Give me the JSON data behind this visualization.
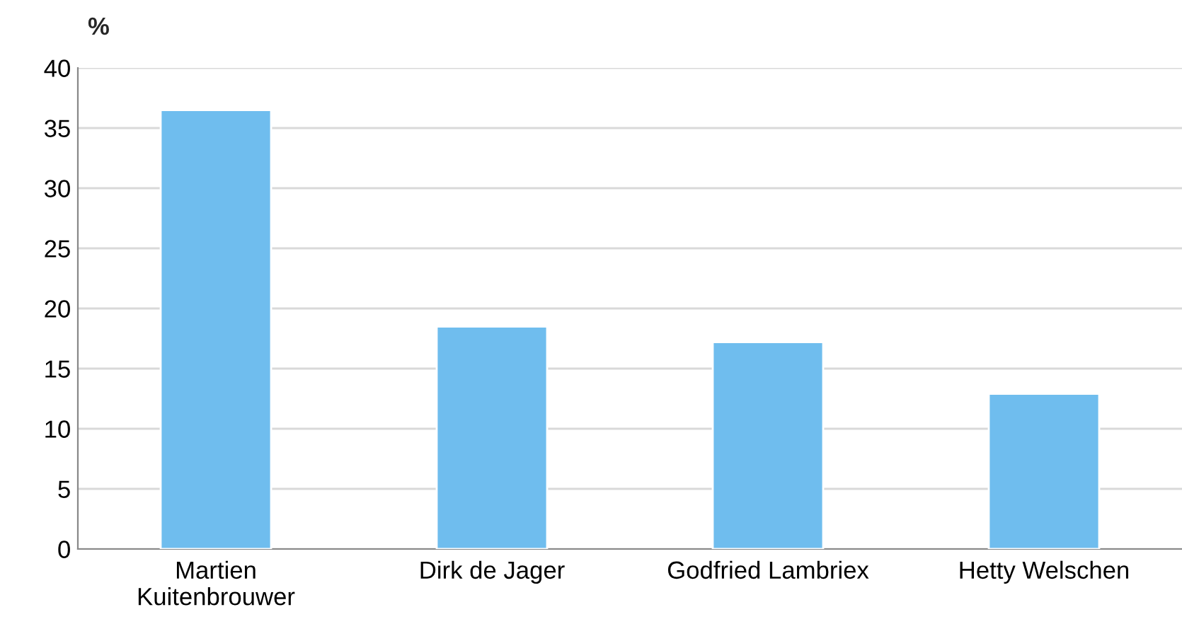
{
  "chart_data": {
    "type": "bar",
    "ylabel": "%",
    "categories": [
      "Martien Kuitenbrouwer",
      "Dirk de Jager",
      "Godfried Lambriex",
      "Hetty Welschen"
    ],
    "values": [
      36.5,
      18.5,
      17.2,
      12.9
    ],
    "color": "#6fbdee",
    "ylim": [
      0,
      40
    ],
    "yticks": [
      0,
      5,
      10,
      15,
      20,
      25,
      30,
      35,
      40
    ],
    "grid": "y"
  }
}
